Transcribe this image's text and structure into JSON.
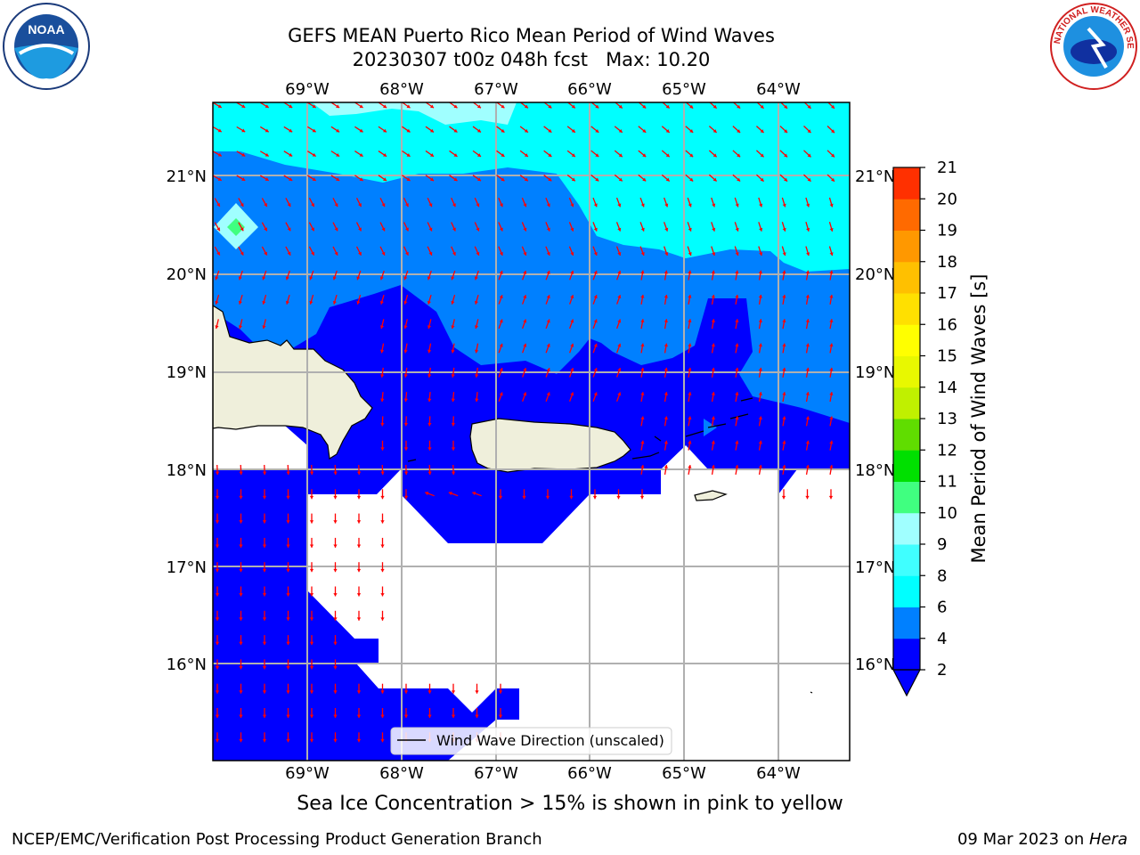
{
  "header": {
    "title_line1": "GEFS MEAN Puerto Rico Mean Period of Wind Waves",
    "title_line2": "20230307 t00z 048h fcst   Max: 10.20"
  },
  "logos": {
    "left": "NOAA",
    "right": "NATIONAL WEATHER SERVICE"
  },
  "caption": "Sea Ice Concentration > 15% is shown in pink to yellow",
  "footer": {
    "left": "NCEP/EMC/Verification Post Processing Product Generation Branch",
    "right_date": "09 Mar 2023 on ",
    "right_host": "Hera"
  },
  "chart_data": {
    "type": "heatmap",
    "title": "GEFS MEAN Puerto Rico Mean Period of Wind Waves",
    "variable": "Mean Period of Wind Waves",
    "units": "s",
    "max": 10.2,
    "lon_range": [
      -70.0,
      -63.25
    ],
    "lat_range": [
      15.0,
      21.75
    ],
    "x_ticks": [
      "69°W",
      "68°W",
      "67°W",
      "66°W",
      "65°W",
      "64°W"
    ],
    "x_tick_values": [
      -69,
      -68,
      -67,
      -66,
      -65,
      -64
    ],
    "y_ticks": [
      "16°N",
      "17°N",
      "18°N",
      "19°N",
      "20°N",
      "21°N"
    ],
    "y_tick_values": [
      16,
      17,
      18,
      19,
      20,
      21
    ],
    "grid": true,
    "legend": {
      "label": "Wind Wave Direction (unscaled)",
      "placement": "bottom-center"
    },
    "colorbar": {
      "label": "Mean Period of Wind Waves [s]",
      "tick_labels": [
        "2",
        "4",
        "6",
        "8",
        "9",
        "10",
        "11",
        "12",
        "13",
        "14",
        "15",
        "16",
        "17",
        "18",
        "19",
        "20",
        "21"
      ],
      "colors": [
        "#0000ff",
        "#0080ff",
        "#00ffff",
        "#40ffff",
        "#a0ffff",
        "#40ff80",
        "#00e000",
        "#60dd00",
        "#c0f000",
        "#e8f800",
        "#ffff00",
        "#ffe000",
        "#ffc000",
        "#ff9800",
        "#ff6a00",
        "#ff3000",
        "#ff0000"
      ],
      "extend": "min",
      "extend_color": "#0000ff"
    },
    "field_colors": {
      "period_2_4": "#0000ff",
      "period_4_6": "#0080ff",
      "period_6_8": "#00ffff",
      "period_8_9": "#40ffff",
      "land": "#efefdb",
      "no_data": "#ffffff",
      "arrow": "#ff0000"
    }
  }
}
